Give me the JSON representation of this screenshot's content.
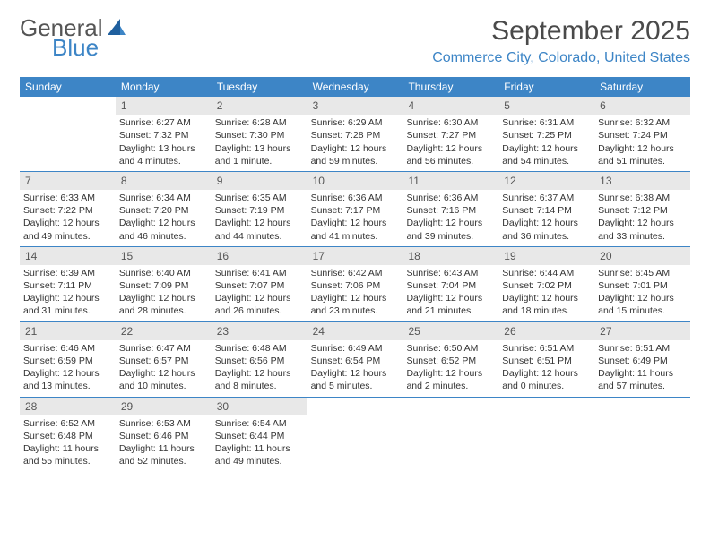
{
  "logo": {
    "line1": "General",
    "line2": "Blue"
  },
  "header": {
    "month_title": "September 2025",
    "location": "Commerce City, Colorado, United States"
  },
  "colors": {
    "accent": "#3d85c6",
    "daynum_bg": "#e8e8e8",
    "text": "#333333"
  },
  "weekdays": [
    "Sunday",
    "Monday",
    "Tuesday",
    "Wednesday",
    "Thursday",
    "Friday",
    "Saturday"
  ],
  "weeks": [
    [
      null,
      {
        "n": "1",
        "sunrise": "Sunrise: 6:27 AM",
        "sunset": "Sunset: 7:32 PM",
        "daylight": "Daylight: 13 hours and 4 minutes."
      },
      {
        "n": "2",
        "sunrise": "Sunrise: 6:28 AM",
        "sunset": "Sunset: 7:30 PM",
        "daylight": "Daylight: 13 hours and 1 minute."
      },
      {
        "n": "3",
        "sunrise": "Sunrise: 6:29 AM",
        "sunset": "Sunset: 7:28 PM",
        "daylight": "Daylight: 12 hours and 59 minutes."
      },
      {
        "n": "4",
        "sunrise": "Sunrise: 6:30 AM",
        "sunset": "Sunset: 7:27 PM",
        "daylight": "Daylight: 12 hours and 56 minutes."
      },
      {
        "n": "5",
        "sunrise": "Sunrise: 6:31 AM",
        "sunset": "Sunset: 7:25 PM",
        "daylight": "Daylight: 12 hours and 54 minutes."
      },
      {
        "n": "6",
        "sunrise": "Sunrise: 6:32 AM",
        "sunset": "Sunset: 7:24 PM",
        "daylight": "Daylight: 12 hours and 51 minutes."
      }
    ],
    [
      {
        "n": "7",
        "sunrise": "Sunrise: 6:33 AM",
        "sunset": "Sunset: 7:22 PM",
        "daylight": "Daylight: 12 hours and 49 minutes."
      },
      {
        "n": "8",
        "sunrise": "Sunrise: 6:34 AM",
        "sunset": "Sunset: 7:20 PM",
        "daylight": "Daylight: 12 hours and 46 minutes."
      },
      {
        "n": "9",
        "sunrise": "Sunrise: 6:35 AM",
        "sunset": "Sunset: 7:19 PM",
        "daylight": "Daylight: 12 hours and 44 minutes."
      },
      {
        "n": "10",
        "sunrise": "Sunrise: 6:36 AM",
        "sunset": "Sunset: 7:17 PM",
        "daylight": "Daylight: 12 hours and 41 minutes."
      },
      {
        "n": "11",
        "sunrise": "Sunrise: 6:36 AM",
        "sunset": "Sunset: 7:16 PM",
        "daylight": "Daylight: 12 hours and 39 minutes."
      },
      {
        "n": "12",
        "sunrise": "Sunrise: 6:37 AM",
        "sunset": "Sunset: 7:14 PM",
        "daylight": "Daylight: 12 hours and 36 minutes."
      },
      {
        "n": "13",
        "sunrise": "Sunrise: 6:38 AM",
        "sunset": "Sunset: 7:12 PM",
        "daylight": "Daylight: 12 hours and 33 minutes."
      }
    ],
    [
      {
        "n": "14",
        "sunrise": "Sunrise: 6:39 AM",
        "sunset": "Sunset: 7:11 PM",
        "daylight": "Daylight: 12 hours and 31 minutes."
      },
      {
        "n": "15",
        "sunrise": "Sunrise: 6:40 AM",
        "sunset": "Sunset: 7:09 PM",
        "daylight": "Daylight: 12 hours and 28 minutes."
      },
      {
        "n": "16",
        "sunrise": "Sunrise: 6:41 AM",
        "sunset": "Sunset: 7:07 PM",
        "daylight": "Daylight: 12 hours and 26 minutes."
      },
      {
        "n": "17",
        "sunrise": "Sunrise: 6:42 AM",
        "sunset": "Sunset: 7:06 PM",
        "daylight": "Daylight: 12 hours and 23 minutes."
      },
      {
        "n": "18",
        "sunrise": "Sunrise: 6:43 AM",
        "sunset": "Sunset: 7:04 PM",
        "daylight": "Daylight: 12 hours and 21 minutes."
      },
      {
        "n": "19",
        "sunrise": "Sunrise: 6:44 AM",
        "sunset": "Sunset: 7:02 PM",
        "daylight": "Daylight: 12 hours and 18 minutes."
      },
      {
        "n": "20",
        "sunrise": "Sunrise: 6:45 AM",
        "sunset": "Sunset: 7:01 PM",
        "daylight": "Daylight: 12 hours and 15 minutes."
      }
    ],
    [
      {
        "n": "21",
        "sunrise": "Sunrise: 6:46 AM",
        "sunset": "Sunset: 6:59 PM",
        "daylight": "Daylight: 12 hours and 13 minutes."
      },
      {
        "n": "22",
        "sunrise": "Sunrise: 6:47 AM",
        "sunset": "Sunset: 6:57 PM",
        "daylight": "Daylight: 12 hours and 10 minutes."
      },
      {
        "n": "23",
        "sunrise": "Sunrise: 6:48 AM",
        "sunset": "Sunset: 6:56 PM",
        "daylight": "Daylight: 12 hours and 8 minutes."
      },
      {
        "n": "24",
        "sunrise": "Sunrise: 6:49 AM",
        "sunset": "Sunset: 6:54 PM",
        "daylight": "Daylight: 12 hours and 5 minutes."
      },
      {
        "n": "25",
        "sunrise": "Sunrise: 6:50 AM",
        "sunset": "Sunset: 6:52 PM",
        "daylight": "Daylight: 12 hours and 2 minutes."
      },
      {
        "n": "26",
        "sunrise": "Sunrise: 6:51 AM",
        "sunset": "Sunset: 6:51 PM",
        "daylight": "Daylight: 12 hours and 0 minutes."
      },
      {
        "n": "27",
        "sunrise": "Sunrise: 6:51 AM",
        "sunset": "Sunset: 6:49 PM",
        "daylight": "Daylight: 11 hours and 57 minutes."
      }
    ],
    [
      {
        "n": "28",
        "sunrise": "Sunrise: 6:52 AM",
        "sunset": "Sunset: 6:48 PM",
        "daylight": "Daylight: 11 hours and 55 minutes."
      },
      {
        "n": "29",
        "sunrise": "Sunrise: 6:53 AM",
        "sunset": "Sunset: 6:46 PM",
        "daylight": "Daylight: 11 hours and 52 minutes."
      },
      {
        "n": "30",
        "sunrise": "Sunrise: 6:54 AM",
        "sunset": "Sunset: 6:44 PM",
        "daylight": "Daylight: 11 hours and 49 minutes."
      },
      null,
      null,
      null,
      null
    ]
  ]
}
